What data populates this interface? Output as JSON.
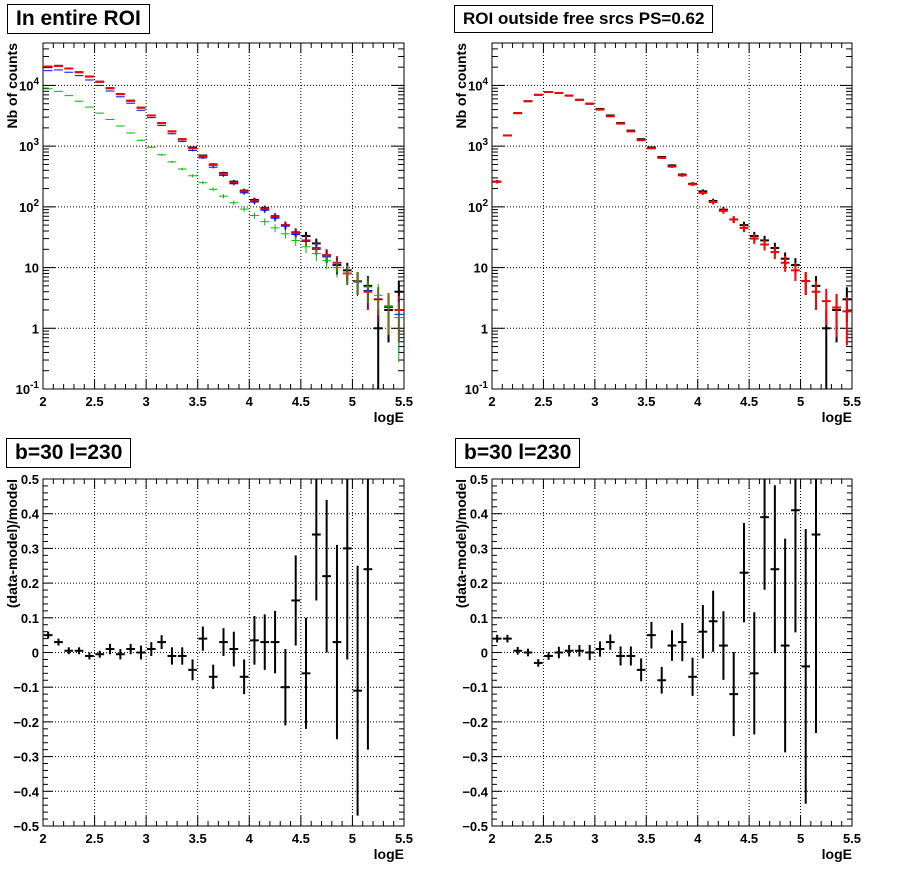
{
  "chart_data": [
    {
      "type": "scatter",
      "title": "In entire ROI",
      "xlabel": "logE",
      "ylabel": "Nb of counts",
      "xlim": [
        2,
        5.5
      ],
      "ylim": [
        0.1,
        50000
      ],
      "yscale": "log",
      "grid": true,
      "x_ticks": [
        "2",
        "2.5",
        "3",
        "3.5",
        "4",
        "4.5",
        "5",
        "5.5"
      ],
      "y_ticks": [
        "10^-1",
        "1",
        "10",
        "10^2",
        "10^3",
        "10^4"
      ],
      "x": [
        2.05,
        2.15,
        2.25,
        2.35,
        2.45,
        2.55,
        2.65,
        2.75,
        2.85,
        2.95,
        3.05,
        3.15,
        3.25,
        3.35,
        3.45,
        3.55,
        3.65,
        3.75,
        3.85,
        3.95,
        4.05,
        4.15,
        4.25,
        4.35,
        4.45,
        4.55,
        4.65,
        4.75,
        4.85,
        4.95,
        5.05,
        5.15,
        5.25,
        5.35,
        5.45
      ],
      "series": [
        {
          "color": "#000000",
          "values": [
            20000,
            21000,
            19000,
            16500,
            14000,
            11500,
            9000,
            7200,
            5600,
            4300,
            3200,
            2400,
            1750,
            1300,
            950,
            700,
            500,
            360,
            260,
            185,
            130,
            95,
            70,
            50,
            38,
            33,
            25,
            16,
            11,
            9,
            6,
            5,
            1,
            2,
            4
          ]
        },
        {
          "color": "#ff0000",
          "values": [
            20500,
            21000,
            19000,
            16500,
            14000,
            11500,
            9000,
            7200,
            5600,
            4300,
            3200,
            2400,
            1750,
            1300,
            920,
            680,
            490,
            350,
            250,
            180,
            125,
            92,
            68,
            50,
            37,
            28,
            21,
            16,
            12,
            8,
            6,
            4,
            3,
            2.3,
            2
          ]
        },
        {
          "color": "#0000ff",
          "values": [
            17500,
            18000,
            16500,
            14500,
            12300,
            10000,
            8100,
            6500,
            5100,
            3900,
            2950,
            2200,
            1600,
            1200,
            850,
            640,
            450,
            330,
            240,
            170,
            120,
            88,
            65,
            48,
            35,
            27,
            20,
            15,
            11,
            8,
            5.8,
            4.2,
            3,
            2.2,
            1.7
          ]
        },
        {
          "color": "#00bb00",
          "values": [
            8800,
            8000,
            6800,
            5500,
            4400,
            3500,
            2750,
            2150,
            1650,
            1250,
            960,
            720,
            550,
            420,
            325,
            250,
            195,
            150,
            117,
            92,
            72,
            57,
            45,
            36,
            28,
            22,
            17,
            13,
            10,
            8,
            6,
            4.8,
            3.5,
            2.3,
            1.5
          ]
        }
      ]
    },
    {
      "type": "scatter",
      "title": "ROI outside free srcs PS=0.62",
      "xlabel": "logE",
      "ylabel": "Nb of counts",
      "xlim": [
        2,
        5.5
      ],
      "ylim": [
        0.1,
        50000
      ],
      "yscale": "log",
      "grid": true,
      "x_ticks": [
        "2",
        "2.5",
        "3",
        "3.5",
        "4",
        "4.5",
        "5",
        "5.5"
      ],
      "y_ticks": [
        "10^-1",
        "1",
        "10",
        "10^2",
        "10^3",
        "10^4"
      ],
      "x": [
        2.05,
        2.15,
        2.25,
        2.35,
        2.45,
        2.55,
        2.65,
        2.75,
        2.85,
        2.95,
        3.05,
        3.15,
        3.25,
        3.35,
        3.45,
        3.55,
        3.65,
        3.75,
        3.85,
        3.95,
        4.05,
        4.15,
        4.25,
        4.35,
        4.45,
        4.55,
        4.65,
        4.75,
        4.85,
        4.95,
        5.05,
        5.15,
        5.25,
        5.35,
        5.45
      ],
      "series": [
        {
          "color": "#000000",
          "values": [
            260,
            1500,
            3500,
            5500,
            7000,
            7800,
            7500,
            6800,
            5800,
            5000,
            4100,
            3200,
            2400,
            1800,
            1300,
            950,
            660,
            480,
            340,
            240,
            180,
            125,
            90,
            62,
            50,
            33,
            28,
            21,
            14,
            11,
            6,
            5,
            1,
            2,
            3
          ]
        },
        {
          "color": "#ff0000",
          "values": [
            260,
            1500,
            3500,
            5500,
            7000,
            7800,
            7500,
            6800,
            5800,
            5000,
            4000,
            3100,
            2350,
            1750,
            1250,
            920,
            640,
            460,
            330,
            235,
            170,
            120,
            86,
            62,
            45,
            30,
            24,
            18,
            12,
            9,
            6,
            4,
            2.8,
            2.2,
            1.9
          ]
        }
      ]
    },
    {
      "type": "scatter",
      "title": "b=30 l=230",
      "xlabel": "logE",
      "ylabel": "(data-model)/model",
      "xlim": [
        2,
        5.5
      ],
      "ylim": [
        -0.5,
        0.5
      ],
      "grid": true,
      "x_ticks": [
        "2",
        "2.5",
        "3",
        "3.5",
        "4",
        "4.5",
        "5",
        "5.5"
      ],
      "y_ticks": [
        "-0.5",
        "-0.4",
        "-0.3",
        "-0.2",
        "-0.1",
        "0",
        "0.1",
        "0.2",
        "0.3",
        "0.4",
        "0.5"
      ],
      "series": [
        {
          "color": "#000000",
          "x": [
            2.05,
            2.15,
            2.25,
            2.35,
            2.45,
            2.55,
            2.65,
            2.75,
            2.85,
            2.95,
            3.05,
            3.15,
            3.25,
            3.35,
            3.45,
            3.55,
            3.65,
            3.75,
            3.85,
            3.95,
            4.05,
            4.15,
            4.25,
            4.35,
            4.45,
            4.55,
            4.65,
            4.75,
            4.85,
            4.95,
            5.05,
            5.15
          ],
          "values": [
            0.05,
            0.03,
            0.005,
            0.005,
            -0.01,
            -0.005,
            0.01,
            -0.005,
            0.01,
            0.0,
            0.01,
            0.03,
            -0.01,
            -0.01,
            -0.05,
            0.04,
            -0.07,
            0.03,
            0.01,
            -0.07,
            0.035,
            0.03,
            0.03,
            -0.1,
            0.15,
            -0.06,
            0.34,
            0.22,
            0.03,
            0.3,
            -0.11,
            0.24
          ],
          "errors": [
            0.01,
            0.01,
            0.01,
            0.01,
            0.01,
            0.01,
            0.015,
            0.015,
            0.015,
            0.02,
            0.02,
            0.02,
            0.025,
            0.025,
            0.03,
            0.035,
            0.035,
            0.04,
            0.05,
            0.05,
            0.07,
            0.08,
            0.09,
            0.11,
            0.13,
            0.16,
            0.19,
            0.22,
            0.28,
            0.32,
            0.36,
            0.52
          ]
        }
      ]
    },
    {
      "type": "scatter",
      "title": "b=30 l=230",
      "xlabel": "logE",
      "ylabel": "(data-model)/model",
      "xlim": [
        2,
        5.5
      ],
      "ylim": [
        -0.5,
        0.5
      ],
      "grid": true,
      "x_ticks": [
        "2",
        "2.5",
        "3",
        "3.5",
        "4",
        "4.5",
        "5",
        "5.5"
      ],
      "y_ticks": [
        "-0.5",
        "-0.4",
        "-0.3",
        "-0.2",
        "-0.1",
        "0",
        "0.1",
        "0.2",
        "0.3",
        "0.4",
        "0.5"
      ],
      "series": [
        {
          "color": "#000000",
          "x": [
            2.05,
            2.15,
            2.25,
            2.35,
            2.45,
            2.55,
            2.65,
            2.75,
            2.85,
            2.95,
            3.05,
            3.15,
            3.25,
            3.35,
            3.45,
            3.55,
            3.65,
            3.75,
            3.85,
            3.95,
            4.05,
            4.15,
            4.25,
            4.35,
            4.45,
            4.55,
            4.65,
            4.75,
            4.85,
            4.95,
            5.05,
            5.15
          ],
          "values": [
            0.04,
            0.04,
            0.005,
            0.0,
            -0.03,
            -0.01,
            0.0,
            0.005,
            0.005,
            0.0,
            0.01,
            0.03,
            -0.01,
            -0.01,
            -0.05,
            0.05,
            -0.08,
            0.02,
            0.03,
            -0.07,
            0.06,
            0.09,
            0.02,
            -0.12,
            0.23,
            -0.06,
            0.39,
            0.24,
            0.02,
            0.41,
            -0.04,
            0.34
          ]
        }
      ]
    }
  ]
}
